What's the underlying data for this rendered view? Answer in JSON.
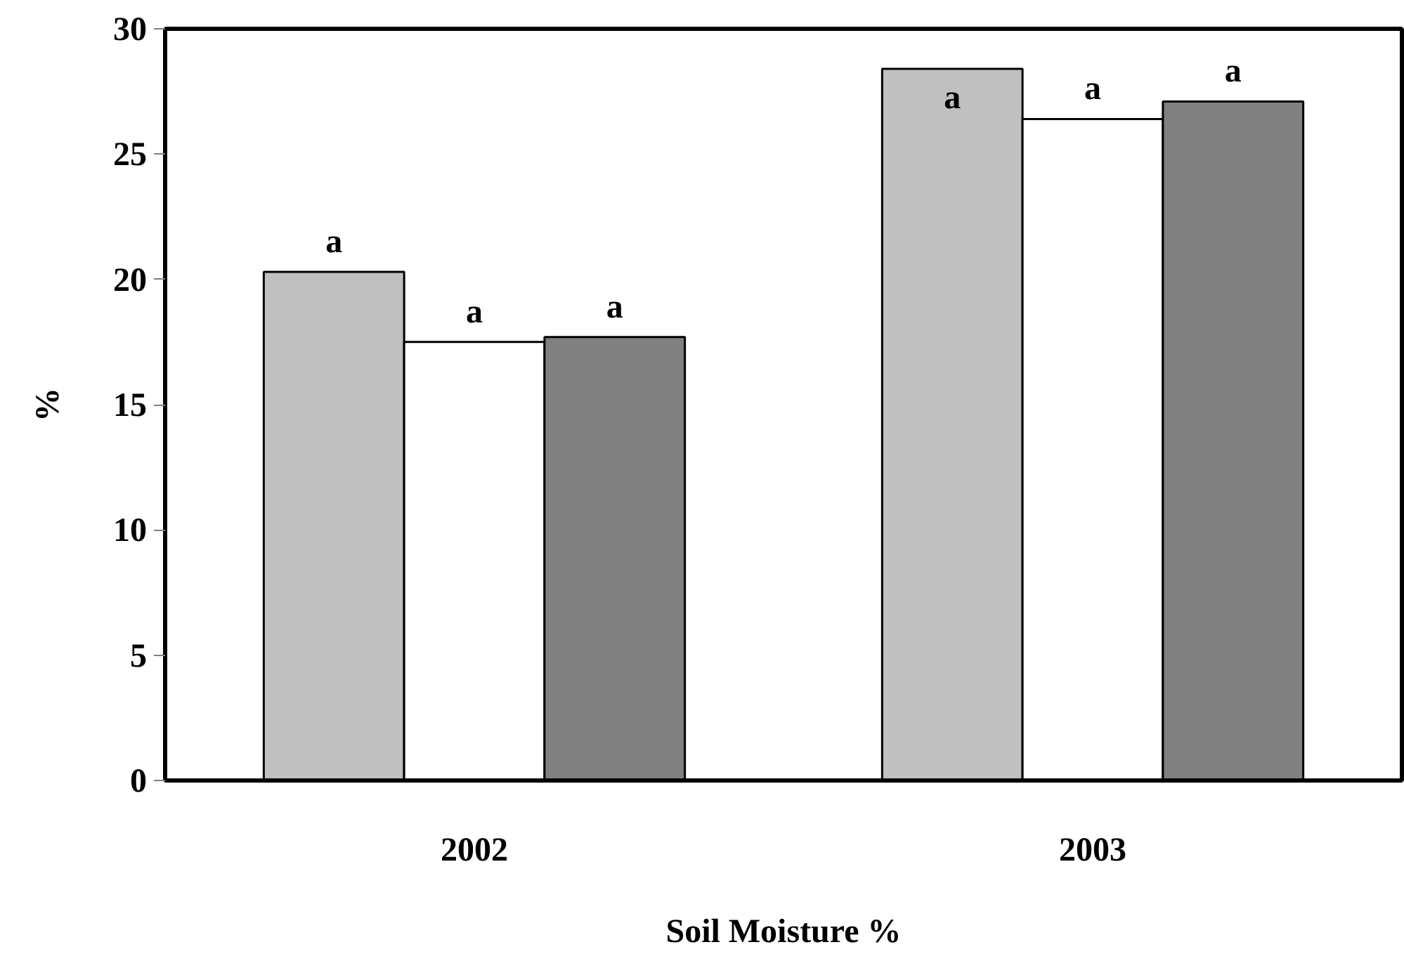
{
  "chart_data": {
    "type": "bar",
    "xlabel": "Soil Moisture %",
    "ylabel": "%",
    "categories": [
      "2002",
      "2003"
    ],
    "series": [
      {
        "color": "#c0c0c0",
        "values": [
          20.3,
          28.4
        ]
      },
      {
        "color": "#ffffff",
        "values": [
          17.5,
          26.4
        ]
      },
      {
        "color": "#808080",
        "values": [
          17.7,
          27.1
        ]
      }
    ],
    "ylim": [
      0,
      30
    ],
    "yticks": [
      0,
      5,
      10,
      15,
      20,
      25,
      30
    ],
    "grid": false,
    "annotations": [
      "a",
      "a",
      "a",
      "a",
      "a",
      "a"
    ]
  }
}
